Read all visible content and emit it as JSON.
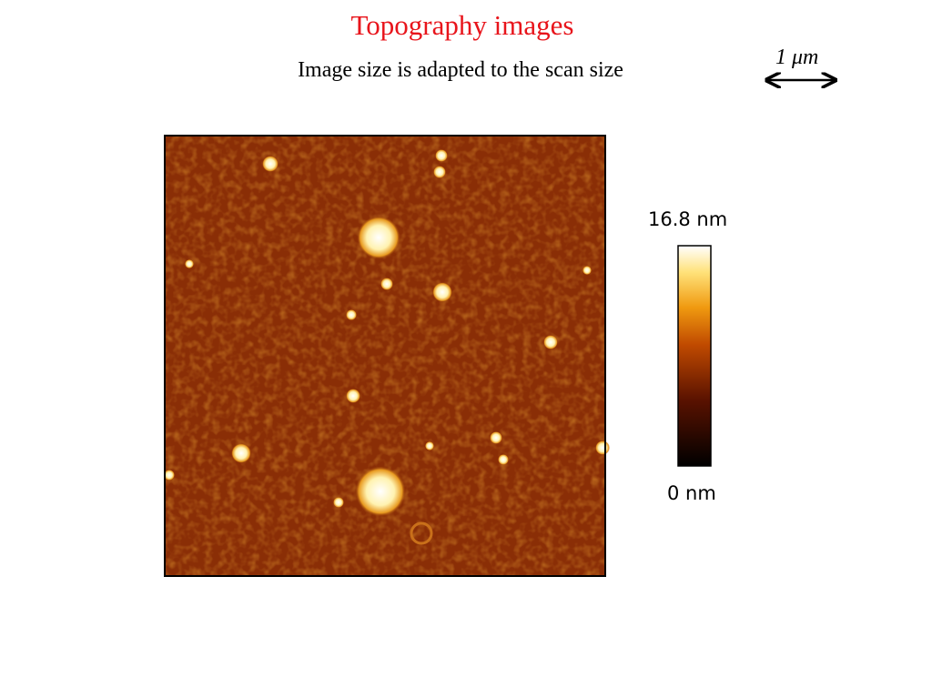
{
  "header": {
    "title": "Topography images",
    "subtitle": "Image size is adapted to the scan size"
  },
  "scale_bar": {
    "label": "1 μm"
  },
  "colorbar": {
    "max_label": "16.8 nm",
    "min_label": "0 nm"
  }
}
